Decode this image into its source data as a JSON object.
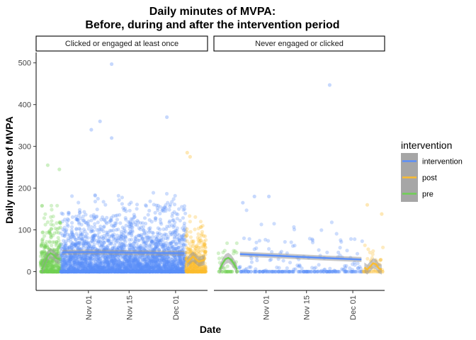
{
  "title_line1": "Daily minutes of MVPA:",
  "title_line2": "Before, during and after the intervention period",
  "chart_data": {
    "type": "scatter",
    "xlabel": "Date",
    "ylabel": "Daily minutes of MVPA",
    "x_range": [
      "2020-10-14",
      "2020-12-12"
    ],
    "ylim": [
      -45,
      525
    ],
    "y_ticks": [
      0,
      100,
      200,
      300,
      400,
      500
    ],
    "x_ticks": [
      {
        "date": "2020-11-01",
        "label": "Nov 01"
      },
      {
        "date": "2020-11-15",
        "label": "Nov 15"
      },
      {
        "date": "2020-12-01",
        "label": "Dec 01"
      }
    ],
    "grid": false,
    "legend_position": "right",
    "legend": {
      "title": "intervention",
      "entries": [
        {
          "name": "intervention",
          "color": "#5b8ff9"
        },
        {
          "name": "post",
          "color": "#fbbc2f"
        },
        {
          "name": "pre",
          "color": "#6fd054"
        }
      ]
    },
    "phases": {
      "pre": {
        "start": "2020-10-16",
        "end": "2020-10-22"
      },
      "intervention": {
        "start": "2020-10-23",
        "end": "2020-12-04"
      },
      "post": {
        "start": "2020-12-05",
        "end": "2020-12-11"
      }
    },
    "panels": [
      {
        "label": "Clicked or engaged at least once",
        "distribution": {
          "pre": {
            "zero_fraction": 0.25,
            "typical": 40,
            "max": 255,
            "points_per_day": 60
          },
          "intervention": {
            "zero_fraction": 0.2,
            "typical": 45,
            "max": 497,
            "points_per_day": 70
          },
          "post": {
            "zero_fraction": 0.25,
            "typical": 35,
            "max": 285,
            "points_per_day": 55
          }
        },
        "notable_points": [
          {
            "x": "2020-11-09",
            "y": 497
          },
          {
            "x": "2020-11-28",
            "y": 370
          },
          {
            "x": "2020-11-05",
            "y": 360
          },
          {
            "x": "2020-11-02",
            "y": 340
          },
          {
            "x": "2020-11-09",
            "y": 320
          },
          {
            "x": "2020-10-18",
            "y": 255
          },
          {
            "x": "2020-10-22",
            "y": 245
          },
          {
            "x": "2020-12-05",
            "y": 285
          },
          {
            "x": "2020-12-06",
            "y": 275
          }
        ],
        "smooth": {
          "pre": [
            [
              "2020-10-16",
              5
            ],
            [
              "2020-10-17",
              22
            ],
            [
              "2020-10-18",
              38
            ],
            [
              "2020-10-19",
              44
            ],
            [
              "2020-10-20",
              40
            ],
            [
              "2020-10-21",
              32
            ],
            [
              "2020-10-22",
              30
            ]
          ],
          "intervention": [
            [
              "2020-10-23",
              46
            ],
            [
              "2020-11-01",
              47
            ],
            [
              "2020-11-10",
              46
            ],
            [
              "2020-11-20",
              45
            ],
            [
              "2020-12-04",
              44
            ]
          ],
          "post": [
            [
              "2020-12-05",
              22
            ],
            [
              "2020-12-06",
              30
            ],
            [
              "2020-12-07",
              36
            ],
            [
              "2020-12-08",
              30
            ],
            [
              "2020-12-09",
              24
            ],
            [
              "2020-12-10",
              26
            ],
            [
              "2020-12-11",
              28
            ]
          ]
        }
      },
      {
        "label": "Never engaged or clicked",
        "distribution": {
          "pre": {
            "zero_fraction": 0.35,
            "typical": 30,
            "max": 110,
            "points_per_day": 7
          },
          "intervention": {
            "zero_fraction": 0.55,
            "typical": 40,
            "max": 447,
            "points_per_day": 6
          },
          "post": {
            "zero_fraction": 0.4,
            "typical": 25,
            "max": 160,
            "points_per_day": 7
          }
        },
        "notable_points": [
          {
            "x": "2020-11-23",
            "y": 447
          },
          {
            "x": "2020-10-28",
            "y": 180
          },
          {
            "x": "2020-10-24",
            "y": 165
          },
          {
            "x": "2020-11-02",
            "y": 180
          },
          {
            "x": "2020-12-06",
            "y": 160
          },
          {
            "x": "2020-12-11",
            "y": 138
          }
        ],
        "smooth": {
          "pre": [
            [
              "2020-10-16",
              5
            ],
            [
              "2020-10-17",
              20
            ],
            [
              "2020-10-18",
              30
            ],
            [
              "2020-10-19",
              33
            ],
            [
              "2020-10-20",
              28
            ],
            [
              "2020-10-21",
              18
            ],
            [
              "2020-10-22",
              5
            ]
          ],
          "intervention": [
            [
              "2020-10-23",
              42
            ],
            [
              "2020-11-05",
              38
            ],
            [
              "2020-11-20",
              33
            ],
            [
              "2020-12-04",
              29
            ]
          ],
          "post": [
            [
              "2020-12-05",
              10
            ],
            [
              "2020-12-06",
              5
            ],
            [
              "2020-12-07",
              12
            ],
            [
              "2020-12-08",
              20
            ],
            [
              "2020-12-09",
              18
            ],
            [
              "2020-12-10",
              8
            ],
            [
              "2020-12-11",
              5
            ]
          ]
        }
      }
    ]
  }
}
